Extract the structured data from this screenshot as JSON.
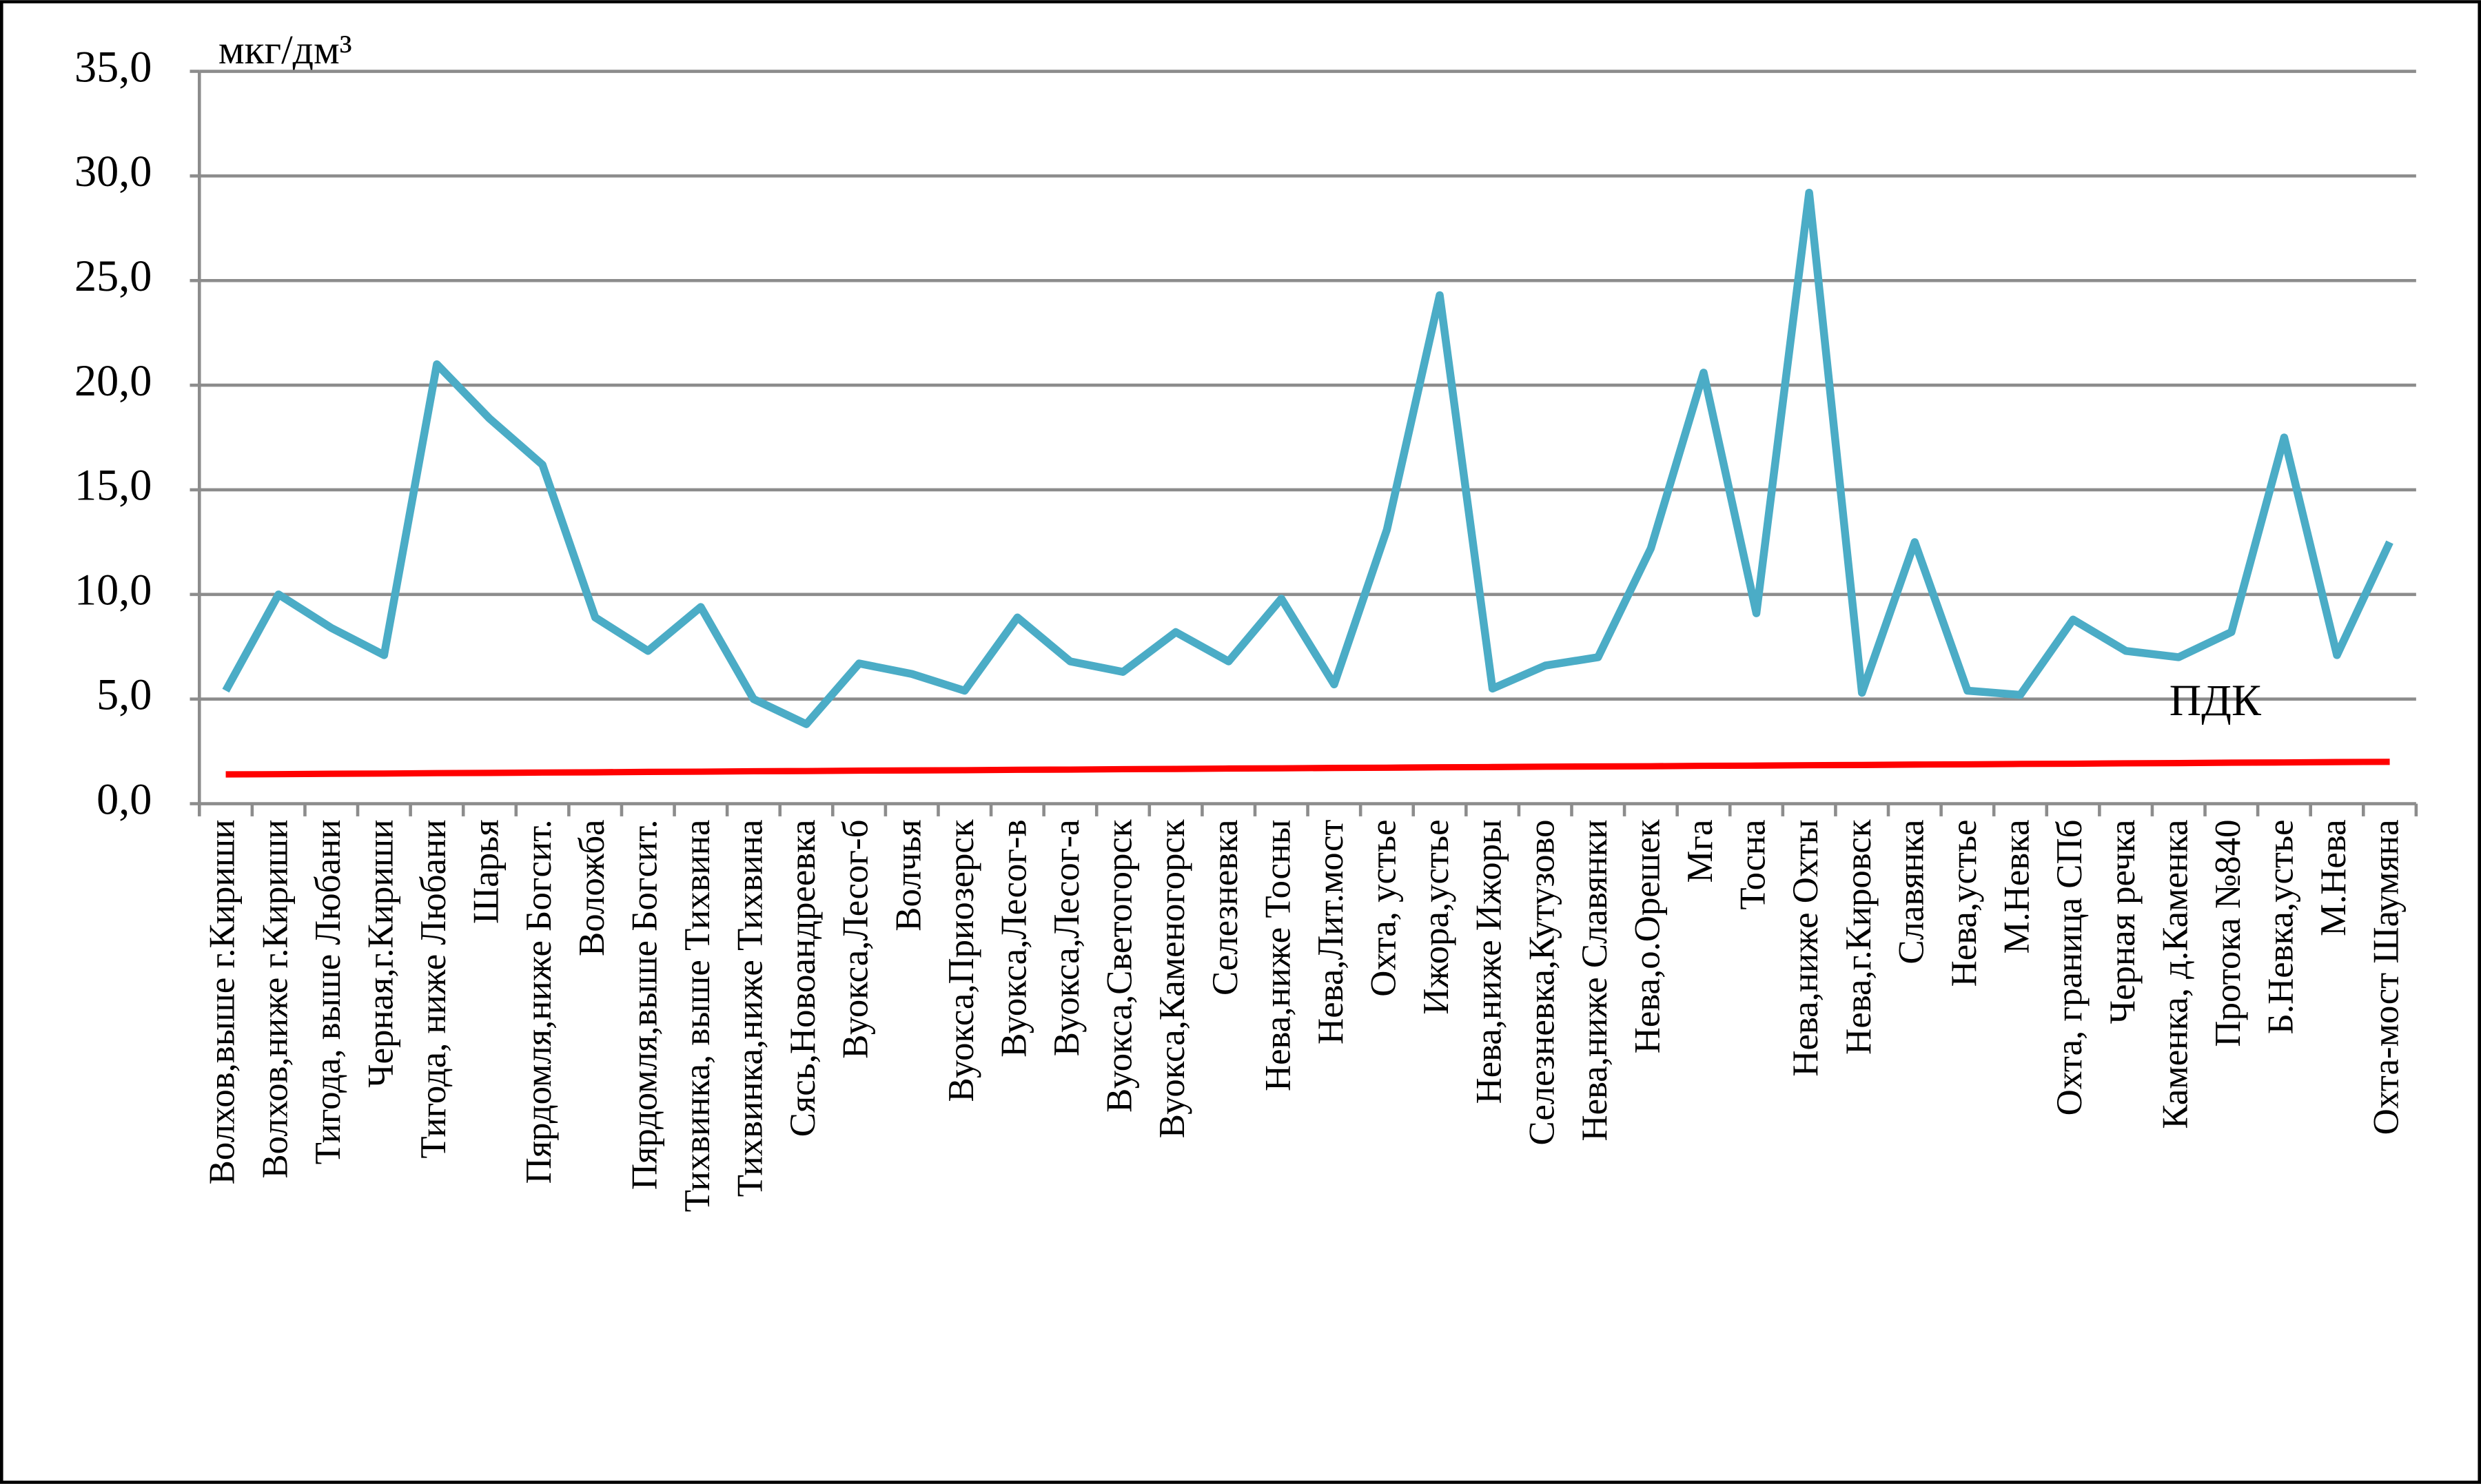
{
  "chart_data": {
    "type": "line",
    "y_label": "мкг/дм³",
    "categories": [
      "Волхов,выше г.Кириши",
      "Волхов,ниже г.Кириши",
      "Тигода, выше Любани",
      "Черная,г.Кириши",
      "Тигода, ниже Любани",
      "Шарья",
      "Пярдомля,ниже Богсит.",
      "Воложба",
      "Пярдомля,выше Богсит.",
      "Тихвинка, выше Тихвина",
      "Тихвинка,ниже Тихвина",
      "Сясь,Новоандреевка",
      "Вуокса,Лесог-б",
      "Волчья",
      "Вуокса,Приозерск",
      "Вуокса,Лесог-в",
      "Вуокса,Лесог-а",
      "Вуокса,Светогорск",
      "Вуокса,Каменогорск",
      "Селезневка",
      "Нева,ниже Тосны",
      "Нева,Лит.мост",
      "Охта, устье",
      "Ижора,устье",
      "Нева,ниже Ижоры",
      "Селезневка,Кутузово",
      "Нева,ниже Славянки",
      "Нева,о.Орешек",
      "Мга",
      "Тосна",
      "Нева,ниже Охты",
      "Нева,г.Кировск",
      "Славянка",
      "Нева,устье",
      "М.Невка",
      "Охта, граница СПб",
      "Черная речка",
      "Каменка, д.Каменка",
      "Протока №840",
      "Б.Невка,устье",
      "М.Нева",
      "Охта-мост Шаумяна"
    ],
    "series": [
      {
        "color": "#4bacc6",
        "values": [
          5.4,
          10.0,
          8.4,
          7.1,
          21.0,
          18.4,
          16.2,
          8.9,
          7.3,
          9.4,
          5.0,
          3.8,
          6.7,
          6.2,
          5.4,
          8.9,
          6.8,
          6.3,
          8.2,
          6.8,
          9.8,
          5.7,
          13.1,
          24.3,
          5.5,
          6.6,
          7.0,
          12.2,
          20.6,
          9.1,
          29.2,
          5.3,
          12.5,
          5.4,
          5.2,
          8.8,
          7.3,
          7.0,
          8.2,
          17.5,
          7.1,
          12.5
        ]
      },
      {
        "name": "ПДК",
        "color": "#ff0000",
        "values": [
          1.4,
          1.41,
          1.43,
          1.44,
          1.46,
          1.47,
          1.49,
          1.5,
          1.52,
          1.53,
          1.55,
          1.56,
          1.58,
          1.59,
          1.6,
          1.62,
          1.63,
          1.65,
          1.66,
          1.68,
          1.69,
          1.71,
          1.72,
          1.74,
          1.75,
          1.77,
          1.78,
          1.79,
          1.81,
          1.82,
          1.84,
          1.85,
          1.87,
          1.88,
          1.9,
          1.91,
          1.93,
          1.94,
          1.96,
          1.97,
          1.99,
          2.0
        ]
      }
    ],
    "ylim": [
      0,
      35
    ],
    "yticks": [
      {
        "value": 0,
        "label": "0,0"
      },
      {
        "value": 5,
        "label": "5,0"
      },
      {
        "value": 10,
        "label": "10,0"
      },
      {
        "value": 15,
        "label": "15,0"
      },
      {
        "value": 20,
        "label": "20,0"
      },
      {
        "value": 25,
        "label": "25,0"
      },
      {
        "value": 30,
        "label": "30,0"
      },
      {
        "value": 35,
        "label": "35,0"
      }
    ],
    "grid": true
  }
}
